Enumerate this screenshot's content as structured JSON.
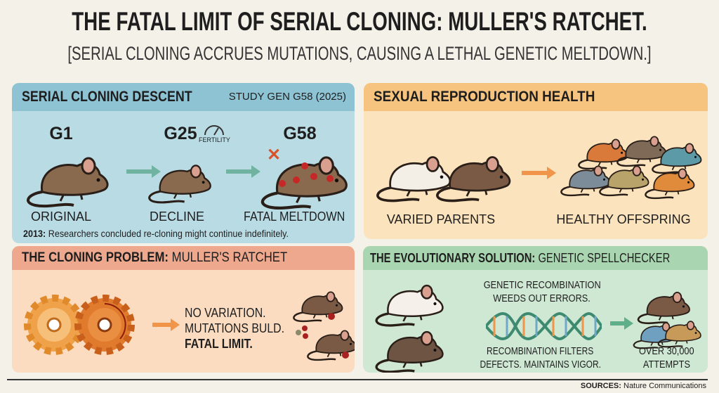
{
  "title": "THE FATAL LIMIT OF SERIAL CLONING: MULLER'S RATCHET.",
  "subtitle": "[SERIAL CLONING ACCRUES MUTATIONS, CAUSING A LETHAL GENETIC MELTDOWN.]",
  "colors": {
    "blue_panel": "#b9dbe4",
    "blue_header": "#8ec3d4",
    "orange_panel": "#fbe3bd",
    "orange_header": "#f6c47f",
    "red_panel": "#fbdcc0",
    "red_header": "#eea88d",
    "green_panel": "#cfe8d3",
    "green_header": "#a9d5b0",
    "mouse_brown": "#8a6a4e",
    "mutation_red": "#c62828"
  },
  "serial": {
    "header": "SERIAL CLONING DESCENT",
    "study": "STUDY GEN G58 (2025)",
    "stages": [
      {
        "gen": "G1",
        "label": "ORIGINAL"
      },
      {
        "gen": "G25",
        "label": "DECLINE",
        "badge": "FERTILITY"
      },
      {
        "gen": "G58",
        "label": "FATAL MELTDOWN"
      }
    ],
    "note_year": "2013:",
    "note_text": " Researchers concluded re-cloning might continue indefinitely."
  },
  "sexual": {
    "header": "SEXUAL REPRODUCTION HEALTH",
    "left_label": "VARIED PARENTS",
    "right_label": "HEALTHY OFFSPRING"
  },
  "problem": {
    "header_bold": "THE CLONING PROBLEM:",
    "header_light": " MULLER'S RATCHET",
    "line1": "NO VARIATION.",
    "line2": "MUTATIONS BULD.",
    "line3": "FATAL LIMIT."
  },
  "solution": {
    "header_bold": "THE EVOLUTIONARY SOLUTION:",
    "header_light": " GENETIC SPELLCHECKER",
    "top_text_1": "GENETIC RECOMBINATION",
    "top_text_2": "WEEDS OUT ERRORS.",
    "bottom_text_1": "RECOMBINATION FILTERS",
    "bottom_text_2": "DEFECTS. MAINTAINS VIGOR.",
    "count_1": "OVER 30,000",
    "count_2": "ATTEMPTS"
  },
  "sources_label": "SOURCES:",
  "sources_text": " Nature Communications"
}
